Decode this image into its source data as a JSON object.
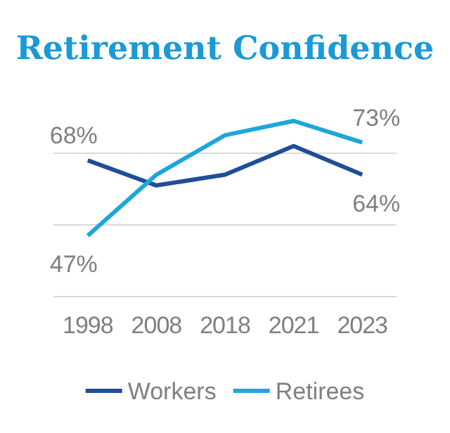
{
  "chart_data": {
    "type": "line",
    "title": "Retirement Confidence",
    "categories": [
      "1998",
      "2008",
      "2018",
      "2021",
      "2023"
    ],
    "series": [
      {
        "name": "Workers",
        "color": "#1f4e96",
        "values": [
          68,
          61,
          64,
          72,
          64
        ],
        "value_labels": [
          "68%",
          null,
          null,
          null,
          "64%"
        ]
      },
      {
        "name": "Retirees",
        "color": "#1ea6da",
        "values": [
          47,
          64,
          75,
          79,
          73
        ],
        "value_labels": [
          "47%",
          null,
          null,
          null,
          "73%"
        ]
      }
    ],
    "ref_lines": [
      {
        "axis": "y",
        "value": 30,
        "color": "#d9d9d9"
      },
      {
        "axis": "y",
        "value": 50,
        "color": "#d9d9d9"
      },
      {
        "axis": "y",
        "value": 70,
        "color": "#d9d9d9"
      }
    ],
    "tick_labels": "x",
    "legend": "bottom",
    "marker": "none",
    "line_style": "solid"
  }
}
